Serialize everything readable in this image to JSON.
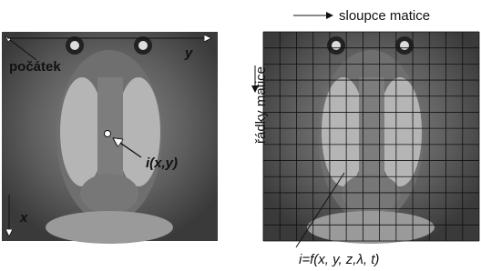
{
  "left_image": {
    "origin_label": "počátek",
    "y_axis_label": "y",
    "x_axis_label": "x",
    "pixel_label": "i(x,y)"
  },
  "right_image": {
    "columns_label": "sloupce matice",
    "rows_label": "řádky matice",
    "function_label": "i=f(x, y, z,λ, t)"
  }
}
